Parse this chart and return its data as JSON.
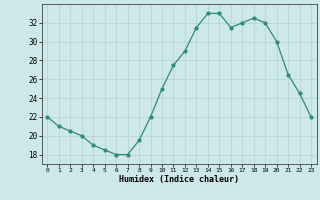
{
  "x": [
    0,
    1,
    2,
    3,
    4,
    5,
    6,
    7,
    8,
    9,
    10,
    11,
    12,
    13,
    14,
    15,
    16,
    17,
    18,
    19,
    20,
    21,
    22,
    23
  ],
  "y": [
    22,
    21,
    20.5,
    20,
    19,
    18.5,
    18,
    18,
    19.5,
    22,
    25,
    27.5,
    29,
    31.5,
    33,
    33,
    31.5,
    32,
    32.5,
    32,
    30,
    26.5,
    24.5,
    22
  ],
  "xlabel": "Humidex (Indice chaleur)",
  "ylabel": "",
  "xlim": [
    -0.5,
    23.5
  ],
  "ylim": [
    17,
    34
  ],
  "yticks": [
    18,
    20,
    22,
    24,
    26,
    28,
    30,
    32
  ],
  "xticks": [
    0,
    1,
    2,
    3,
    4,
    5,
    6,
    7,
    8,
    9,
    10,
    11,
    12,
    13,
    14,
    15,
    16,
    17,
    18,
    19,
    20,
    21,
    22,
    23
  ],
  "line_color": "#2e8b7a",
  "marker_color": "#2e8b7a",
  "bg_color": "#cce8e8",
  "grid_color": "#b8d4d4",
  "axes_facecolor": "#cce8e8"
}
